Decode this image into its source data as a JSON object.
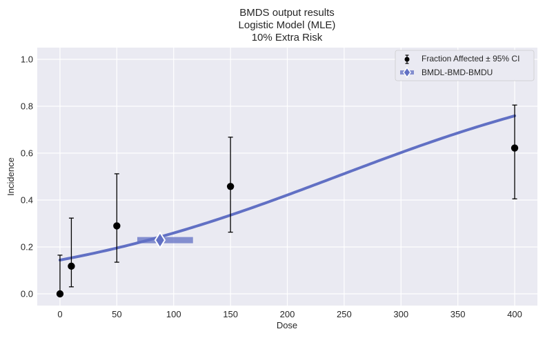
{
  "chart_data": {
    "type": "scatter",
    "title_lines": [
      "BMDS output results",
      "Logistic Model (MLE)",
      "10% Extra Risk"
    ],
    "xlabel": "Dose",
    "ylabel": "Incidence",
    "xlim": [
      -20,
      420
    ],
    "ylim": [
      -0.05,
      1.05
    ],
    "x_ticks": [
      0,
      50,
      100,
      150,
      200,
      250,
      300,
      350,
      400
    ],
    "y_ticks": [
      0.0,
      0.2,
      0.4,
      0.6,
      0.8,
      1.0
    ],
    "x_tick_labels": [
      "0",
      "50",
      "100",
      "150",
      "200",
      "250",
      "300",
      "350",
      "400"
    ],
    "y_tick_labels": [
      "0.0",
      "0.2",
      "0.4",
      "0.6",
      "0.8",
      "1.0"
    ],
    "grid": true,
    "background_color": "#eaeaf2",
    "legend_position": "top-right",
    "series": [
      {
        "name": "Fraction Affected ± 95% CI",
        "kind": "errorbar",
        "color": "#000000",
        "points": [
          {
            "x": 0,
            "y": 0.0,
            "lower": 0.0,
            "upper": 0.165
          },
          {
            "x": 10,
            "y": 0.118,
            "lower": 0.03,
            "upper": 0.323
          },
          {
            "x": 50,
            "y": 0.29,
            "lower": 0.135,
            "upper": 0.512
          },
          {
            "x": 150,
            "y": 0.458,
            "lower": 0.263,
            "upper": 0.668
          },
          {
            "x": 400,
            "y": 0.622,
            "lower": 0.405,
            "upper": 0.805
          }
        ]
      },
      {
        "name": "BMDL-BMD-BMDU",
        "kind": "interval",
        "color": "#6170c4",
        "bmdl": 68,
        "bmd": 88,
        "bmdu": 117,
        "y": 0.229
      }
    ],
    "model_curve": {
      "color": "#6170c4",
      "x_min": 0,
      "x_max": 400,
      "b0": -1.781,
      "b1": 0.00732
    }
  }
}
